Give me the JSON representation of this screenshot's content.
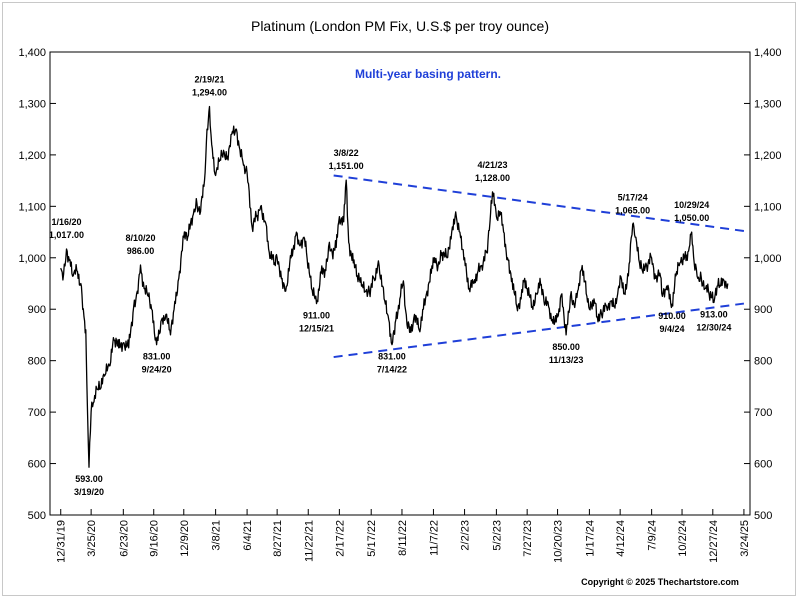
{
  "chart_data": {
    "type": "line",
    "title": "Platinum (London PM Fix, U.S.$ per troy ounce)",
    "subtitle": "Multi-year basing pattern.",
    "copyright": "Copyright © 2025 Thechartstore.com",
    "ylim": [
      500,
      1400
    ],
    "y_ticks": [
      500,
      600,
      700,
      800,
      900,
      1000,
      1100,
      1200,
      1300,
      1400
    ],
    "y_tick_labels": [
      "500",
      "600",
      "700",
      "800",
      "900",
      "1,000",
      "1,100",
      "1,200",
      "1,300",
      "1,400"
    ],
    "x_range": [
      "2019-12-01",
      "2025-04-10"
    ],
    "x_ticks": [
      {
        "date": "2019-12-31",
        "label": "12/31/19"
      },
      {
        "date": "2020-03-25",
        "label": "3/25/20"
      },
      {
        "date": "2020-06-23",
        "label": "6/23/20"
      },
      {
        "date": "2020-09-16",
        "label": "9/16/20"
      },
      {
        "date": "2020-12-09",
        "label": "12/9/20"
      },
      {
        "date": "2021-03-08",
        "label": "3/8/21"
      },
      {
        "date": "2021-06-04",
        "label": "6/4/21"
      },
      {
        "date": "2021-08-27",
        "label": "8/27/21"
      },
      {
        "date": "2021-11-22",
        "label": "11/22/21"
      },
      {
        "date": "2022-02-17",
        "label": "2/17/22"
      },
      {
        "date": "2022-05-17",
        "label": "5/17/22"
      },
      {
        "date": "2022-08-11",
        "label": "8/11/22"
      },
      {
        "date": "2022-11-07",
        "label": "11/7/22"
      },
      {
        "date": "2023-02-02",
        "label": "2/2/23"
      },
      {
        "date": "2023-05-02",
        "label": "5/2/23"
      },
      {
        "date": "2023-07-27",
        "label": "7/27/23"
      },
      {
        "date": "2023-10-20",
        "label": "10/20/23"
      },
      {
        "date": "2024-01-17",
        "label": "1/17/24"
      },
      {
        "date": "2024-04-12",
        "label": "4/12/24"
      },
      {
        "date": "2024-07-09",
        "label": "7/9/24"
      },
      {
        "date": "2024-10-02",
        "label": "10/2/24"
      },
      {
        "date": "2024-12-27",
        "label": "12/27/24"
      },
      {
        "date": "2025-03-24",
        "label": "3/24/25"
      }
    ],
    "series": [
      {
        "color": "#000000",
        "points": [
          [
            "2019-12-31",
            980
          ],
          [
            "2020-01-08",
            968
          ],
          [
            "2020-01-16",
            1017
          ],
          [
            "2020-01-24",
            995
          ],
          [
            "2020-02-04",
            965
          ],
          [
            "2020-02-14",
            975
          ],
          [
            "2020-02-25",
            950
          ],
          [
            "2020-03-05",
            885
          ],
          [
            "2020-03-10",
            860
          ],
          [
            "2020-03-13",
            760
          ],
          [
            "2020-03-17",
            640
          ],
          [
            "2020-03-19",
            593
          ],
          [
            "2020-03-25",
            700
          ],
          [
            "2020-04-02",
            720
          ],
          [
            "2020-04-10",
            745
          ],
          [
            "2020-04-20",
            745
          ],
          [
            "2020-05-01",
            770
          ],
          [
            "2020-05-15",
            790
          ],
          [
            "2020-05-28",
            840
          ],
          [
            "2020-06-10",
            825
          ],
          [
            "2020-06-23",
            835
          ],
          [
            "2020-07-08",
            825
          ],
          [
            "2020-07-22",
            905
          ],
          [
            "2020-08-01",
            935
          ],
          [
            "2020-08-10",
            986
          ],
          [
            "2020-08-20",
            940
          ],
          [
            "2020-09-01",
            925
          ],
          [
            "2020-09-10",
            900
          ],
          [
            "2020-09-24",
            831
          ],
          [
            "2020-10-08",
            880
          ],
          [
            "2020-10-20",
            890
          ],
          [
            "2020-11-02",
            850
          ],
          [
            "2020-11-12",
            900
          ],
          [
            "2020-11-25",
            960
          ],
          [
            "2020-12-09",
            1040
          ],
          [
            "2020-12-20",
            1040
          ],
          [
            "2021-01-05",
            1085
          ],
          [
            "2021-01-15",
            1105
          ],
          [
            "2021-01-25",
            1090
          ],
          [
            "2021-02-05",
            1150
          ],
          [
            "2021-02-12",
            1250
          ],
          [
            "2021-02-19",
            1294
          ],
          [
            "2021-02-25",
            1220
          ],
          [
            "2021-03-08",
            1160
          ],
          [
            "2021-03-20",
            1190
          ],
          [
            "2021-04-01",
            1205
          ],
          [
            "2021-04-12",
            1190
          ],
          [
            "2021-04-22",
            1240
          ],
          [
            "2021-05-05",
            1250
          ],
          [
            "2021-05-15",
            1210
          ],
          [
            "2021-05-25",
            1180
          ],
          [
            "2021-06-04",
            1165
          ],
          [
            "2021-06-18",
            1060
          ],
          [
            "2021-06-30",
            1080
          ],
          [
            "2021-07-12",
            1100
          ],
          [
            "2021-07-25",
            1070
          ],
          [
            "2021-08-05",
            1010
          ],
          [
            "2021-08-20",
            990
          ],
          [
            "2021-08-27",
            1000
          ],
          [
            "2021-09-10",
            960
          ],
          [
            "2021-09-20",
            935
          ],
          [
            "2021-10-05",
            1000
          ],
          [
            "2021-10-20",
            1050
          ],
          [
            "2021-10-28",
            1025
          ],
          [
            "2021-11-10",
            1040
          ],
          [
            "2021-11-17",
            1010
          ],
          [
            "2021-12-01",
            940
          ],
          [
            "2021-12-15",
            911
          ],
          [
            "2021-12-28",
            970
          ],
          [
            "2022-01-10",
            975
          ],
          [
            "2022-01-20",
            1030
          ],
          [
            "2022-01-28",
            1010
          ],
          [
            "2022-02-08",
            1020
          ],
          [
            "2022-02-17",
            1080
          ],
          [
            "2022-03-01",
            1070
          ],
          [
            "2022-03-08",
            1151
          ],
          [
            "2022-03-15",
            1030
          ],
          [
            "2022-03-28",
            990
          ],
          [
            "2022-04-08",
            965
          ],
          [
            "2022-04-20",
            945
          ],
          [
            "2022-05-02",
            935
          ],
          [
            "2022-05-12",
            935
          ],
          [
            "2022-05-25",
            960
          ],
          [
            "2022-06-08",
            985
          ],
          [
            "2022-06-22",
            920
          ],
          [
            "2022-07-05",
            880
          ],
          [
            "2022-07-14",
            831
          ],
          [
            "2022-07-25",
            880
          ],
          [
            "2022-08-05",
            920
          ],
          [
            "2022-08-15",
            955
          ],
          [
            "2022-08-25",
            870
          ],
          [
            "2022-09-05",
            855
          ],
          [
            "2022-09-15",
            890
          ],
          [
            "2022-09-28",
            860
          ],
          [
            "2022-10-10",
            900
          ],
          [
            "2022-10-20",
            935
          ],
          [
            "2022-11-01",
            970
          ],
          [
            "2022-11-10",
            1000
          ],
          [
            "2022-11-20",
            985
          ],
          [
            "2022-12-01",
            1010
          ],
          [
            "2022-12-15",
            1000
          ],
          [
            "2022-12-30",
            1060
          ],
          [
            "2023-01-10",
            1080
          ],
          [
            "2023-01-20",
            1050
          ],
          [
            "2023-02-02",
            1000
          ],
          [
            "2023-02-15",
            940
          ],
          [
            "2023-02-28",
            950
          ],
          [
            "2023-03-10",
            970
          ],
          [
            "2023-03-22",
            985
          ],
          [
            "2023-04-05",
            1010
          ],
          [
            "2023-04-14",
            1070
          ],
          [
            "2023-04-21",
            1128
          ],
          [
            "2023-05-02",
            1080
          ],
          [
            "2023-05-12",
            1090
          ],
          [
            "2023-05-22",
            1050
          ],
          [
            "2023-06-02",
            1000
          ],
          [
            "2023-06-15",
            960
          ],
          [
            "2023-06-28",
            905
          ],
          [
            "2023-07-10",
            920
          ],
          [
            "2023-07-20",
            960
          ],
          [
            "2023-07-27",
            940
          ],
          [
            "2023-08-10",
            905
          ],
          [
            "2023-08-22",
            930
          ],
          [
            "2023-09-01",
            960
          ],
          [
            "2023-09-12",
            915
          ],
          [
            "2023-09-25",
            905
          ],
          [
            "2023-10-05",
            880
          ],
          [
            "2023-10-20",
            885
          ],
          [
            "2023-11-01",
            930
          ],
          [
            "2023-11-13",
            850
          ],
          [
            "2023-11-25",
            925
          ],
          [
            "2023-12-05",
            910
          ],
          [
            "2023-12-15",
            935
          ],
          [
            "2023-12-28",
            985
          ],
          [
            "2024-01-10",
            925
          ],
          [
            "2024-01-17",
            900
          ],
          [
            "2024-01-30",
            920
          ],
          [
            "2024-02-08",
            885
          ],
          [
            "2024-02-20",
            890
          ],
          [
            "2024-03-05",
            905
          ],
          [
            "2024-03-15",
            915
          ],
          [
            "2024-03-25",
            905
          ],
          [
            "2024-04-05",
            930
          ],
          [
            "2024-04-12",
            965
          ],
          [
            "2024-04-22",
            930
          ],
          [
            "2024-05-05",
            965
          ],
          [
            "2024-05-17",
            1065
          ],
          [
            "2024-05-24",
            1040
          ],
          [
            "2024-06-05",
            990
          ],
          [
            "2024-06-15",
            970
          ],
          [
            "2024-06-25",
            985
          ],
          [
            "2024-07-09",
            1000
          ],
          [
            "2024-07-20",
            960
          ],
          [
            "2024-08-01",
            970
          ],
          [
            "2024-08-08",
            925
          ],
          [
            "2024-08-20",
            945
          ],
          [
            "2024-09-04",
            910
          ],
          [
            "2024-09-15",
            965
          ],
          [
            "2024-09-26",
            990
          ],
          [
            "2024-10-02",
            990
          ],
          [
            "2024-10-15",
            1005
          ],
          [
            "2024-10-22",
            1020
          ],
          [
            "2024-10-29",
            1050
          ],
          [
            "2024-11-05",
            990
          ],
          [
            "2024-11-15",
            960
          ],
          [
            "2024-11-25",
            960
          ],
          [
            "2024-12-05",
            940
          ],
          [
            "2024-12-15",
            935
          ],
          [
            "2024-12-30",
            913
          ],
          [
            "2025-01-08",
            945
          ],
          [
            "2025-01-18",
            945
          ],
          [
            "2025-01-28",
            955
          ],
          [
            "2025-02-07",
            950
          ]
        ]
      }
    ],
    "trendlines": [
      {
        "color": "#1f3fd8",
        "start": [
          "2022-02-01",
          1160
        ],
        "end": [
          "2025-03-24",
          1052
        ]
      },
      {
        "color": "#1f3fd8",
        "start": [
          "2022-02-01",
          807
        ],
        "end": [
          "2025-03-24",
          911
        ]
      }
    ],
    "annotations": [
      {
        "date": "2020-01-16",
        "value": 1017,
        "lines": [
          "1/16/20",
          "1,017.00"
        ],
        "pos": "above"
      },
      {
        "date": "2020-03-19",
        "value": 593,
        "lines": [
          "593.00",
          "3/19/20"
        ],
        "pos": "below"
      },
      {
        "date": "2020-08-10",
        "value": 986,
        "lines": [
          "8/10/20",
          "986.00"
        ],
        "pos": "above"
      },
      {
        "date": "2020-09-24",
        "value": 831,
        "lines": [
          "831.00",
          "9/24/20"
        ],
        "pos": "below"
      },
      {
        "date": "2021-02-19",
        "value": 1294,
        "lines": [
          "2/19/21",
          "1,294.00"
        ],
        "pos": "above"
      },
      {
        "date": "2021-12-15",
        "value": 911,
        "lines": [
          "911.00",
          "12/15/21"
        ],
        "pos": "below"
      },
      {
        "date": "2022-03-08",
        "value": 1151,
        "lines": [
          "3/8/22",
          "1,151.00"
        ],
        "pos": "above"
      },
      {
        "date": "2022-07-14",
        "value": 831,
        "lines": [
          "831.00",
          "7/14/22"
        ],
        "pos": "below"
      },
      {
        "date": "2023-04-21",
        "value": 1128,
        "lines": [
          "4/21/23",
          "1,128.00"
        ],
        "pos": "above"
      },
      {
        "date": "2023-11-13",
        "value": 850,
        "lines": [
          "850.00",
          "11/13/23"
        ],
        "pos": "below"
      },
      {
        "date": "2024-05-17",
        "value": 1065,
        "lines": [
          "5/17/24",
          "1,065.00"
        ],
        "pos": "above"
      },
      {
        "date": "2024-09-04",
        "value": 910,
        "lines": [
          "910.00",
          "9/4/24"
        ],
        "pos": "below"
      },
      {
        "date": "2024-10-29",
        "value": 1050,
        "lines": [
          "10/29/24",
          "1,050.00"
        ],
        "pos": "above"
      },
      {
        "date": "2024-12-30",
        "value": 913,
        "lines": [
          "913.00",
          "12/30/24"
        ],
        "pos": "below"
      }
    ],
    "grid": false,
    "legend": "none"
  }
}
